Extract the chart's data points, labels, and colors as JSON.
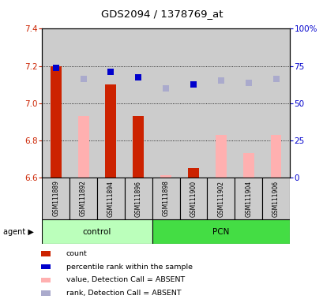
{
  "title": "GDS2094 / 1378769_at",
  "samples": [
    "GSM111889",
    "GSM111892",
    "GSM111894",
    "GSM111896",
    "GSM111898",
    "GSM111900",
    "GSM111902",
    "GSM111904",
    "GSM111906"
  ],
  "bar_values": [
    7.2,
    null,
    7.1,
    6.93,
    null,
    6.65,
    null,
    null,
    null
  ],
  "pink_bar_values": [
    null,
    6.93,
    null,
    null,
    6.61,
    null,
    6.83,
    6.73,
    6.83
  ],
  "blue_dot_values": [
    7.19,
    null,
    7.17,
    7.14,
    null,
    7.1,
    null,
    null,
    null
  ],
  "lavender_dot_values": [
    null,
    7.13,
    null,
    null,
    7.08,
    null,
    7.12,
    7.11,
    7.13
  ],
  "ylim": [
    6.6,
    7.4
  ],
  "yticks": [
    6.6,
    6.8,
    7.0,
    7.2,
    7.4
  ],
  "y2lim": [
    0,
    100
  ],
  "y2ticks": [
    0,
    25,
    50,
    75,
    100
  ],
  "y2ticklabels": [
    "0",
    "25",
    "50",
    "75",
    "100%"
  ],
  "bar_color": "#cc2200",
  "pink_color": "#ffb0b0",
  "blue_color": "#0000cc",
  "lavender_color": "#aaaacc",
  "control_bg": "#bbffbb",
  "pcn_bg": "#44dd44",
  "sample_bg": "#cccccc",
  "plot_bg": "#ffffff",
  "legend_items": [
    {
      "label": "count",
      "color": "#cc2200"
    },
    {
      "label": "percentile rank within the sample",
      "color": "#0000cc"
    },
    {
      "label": "value, Detection Call = ABSENT",
      "color": "#ffb0b0"
    },
    {
      "label": "rank, Detection Call = ABSENT",
      "color": "#aaaacc"
    }
  ],
  "bar_width": 0.4,
  "ctrl_count": 4,
  "pcn_count": 5
}
